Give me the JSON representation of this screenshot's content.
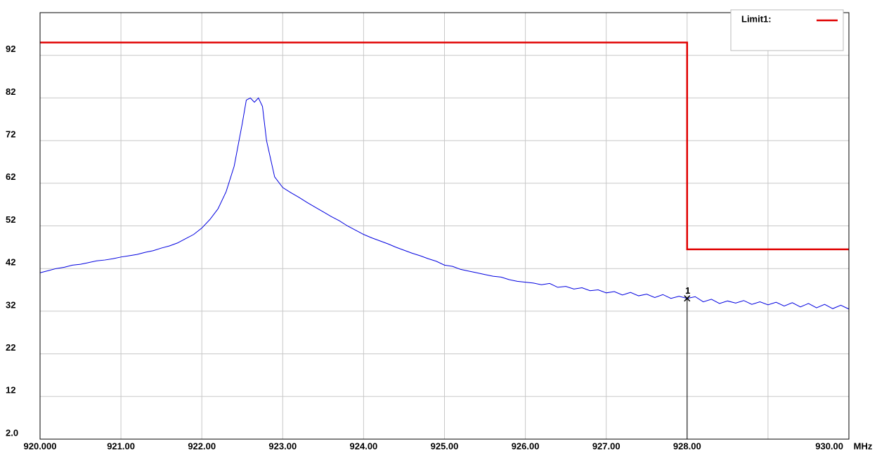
{
  "chart_data": {
    "type": "line",
    "x_unit": "MHz",
    "xlim": [
      920,
      930
    ],
    "xticks": [
      {
        "value": 920,
        "label": "920.000"
      },
      {
        "value": 921,
        "label": "921.00"
      },
      {
        "value": 922,
        "label": "922.00"
      },
      {
        "value": 923,
        "label": "923.00"
      },
      {
        "value": 924,
        "label": "924.00"
      },
      {
        "value": 925,
        "label": "925.00"
      },
      {
        "value": 926,
        "label": "926.00"
      },
      {
        "value": 927,
        "label": "927.00"
      },
      {
        "value": 928,
        "label": "928.00"
      },
      {
        "value": 929,
        "label": null
      },
      {
        "value": 930,
        "label": "930.00"
      }
    ],
    "ylim": [
      2,
      102
    ],
    "yticks": [
      {
        "value": 2,
        "label": "2.0"
      },
      12,
      22,
      32,
      42,
      52,
      62,
      72,
      82,
      92
    ],
    "grid": true,
    "legend": "top-right",
    "series": [
      {
        "name": "Limit1:",
        "color": "#e00000",
        "x": [
          920,
          928,
          928,
          930
        ],
        "values": [
          95,
          95,
          46.5,
          46.5
        ]
      },
      {
        "name": null,
        "color": "#0000e0",
        "x": [
          920.0,
          920.1,
          920.2,
          920.3,
          920.4,
          920.5,
          920.6,
          920.7,
          920.8,
          920.9,
          921.0,
          921.1,
          921.2,
          921.3,
          921.4,
          921.5,
          921.6,
          921.7,
          921.8,
          921.9,
          922.0,
          922.1,
          922.2,
          922.3,
          922.4,
          922.5,
          922.55,
          922.6,
          922.65,
          922.7,
          922.75,
          922.8,
          922.9,
          923.0,
          923.1,
          923.2,
          923.3,
          923.4,
          923.5,
          923.6,
          923.7,
          923.8,
          923.9,
          924.0,
          924.1,
          924.2,
          924.3,
          924.4,
          924.5,
          924.6,
          924.7,
          924.8,
          924.9,
          925.0,
          925.1,
          925.2,
          925.3,
          925.4,
          925.5,
          925.6,
          925.7,
          925.8,
          925.9,
          926.0,
          926.1,
          926.2,
          926.3,
          926.4,
          926.5,
          926.6,
          926.7,
          926.8,
          926.9,
          927.0,
          927.1,
          927.2,
          927.3,
          927.4,
          927.5,
          927.6,
          927.7,
          927.8,
          927.9,
          928.0,
          928.1,
          928.2,
          928.3,
          928.4,
          928.5,
          928.6,
          928.7,
          928.8,
          928.9,
          929.0,
          929.1,
          929.2,
          929.3,
          929.4,
          929.5,
          929.6,
          929.7,
          929.8,
          929.9,
          930.0
        ],
        "values": [
          41,
          41.5,
          42,
          42.3,
          42.8,
          43,
          43.4,
          43.8,
          44,
          44.3,
          44.7,
          45,
          45.3,
          45.8,
          46.2,
          46.8,
          47.3,
          48,
          49,
          50,
          51.5,
          53.5,
          56,
          60,
          66,
          76,
          81.5,
          82,
          81,
          82,
          80,
          72,
          63.5,
          61,
          59.8,
          58.7,
          57.5,
          56.4,
          55.3,
          54.2,
          53.2,
          52,
          51,
          50,
          49.2,
          48.5,
          47.8,
          47,
          46.3,
          45.6,
          45,
          44.3,
          43.7,
          42.8,
          42.5,
          41.8,
          41.4,
          41,
          40.6,
          40.2,
          40,
          39.4,
          39,
          38.8,
          38.6,
          38.2,
          38.5,
          37.6,
          37.8,
          37.2,
          37.5,
          36.8,
          37,
          36.3,
          36.6,
          35.8,
          36.4,
          35.6,
          36,
          35.2,
          35.9,
          35,
          35.5,
          35,
          35.4,
          34.2,
          34.8,
          33.8,
          34.4,
          33.9,
          34.5,
          33.6,
          34.2,
          33.5,
          34.1,
          33.2,
          34,
          33,
          33.8,
          32.8,
          33.6,
          32.6,
          33.4,
          32.5
        ]
      }
    ],
    "marker": {
      "label": "1",
      "x": 928,
      "y": 35
    }
  }
}
